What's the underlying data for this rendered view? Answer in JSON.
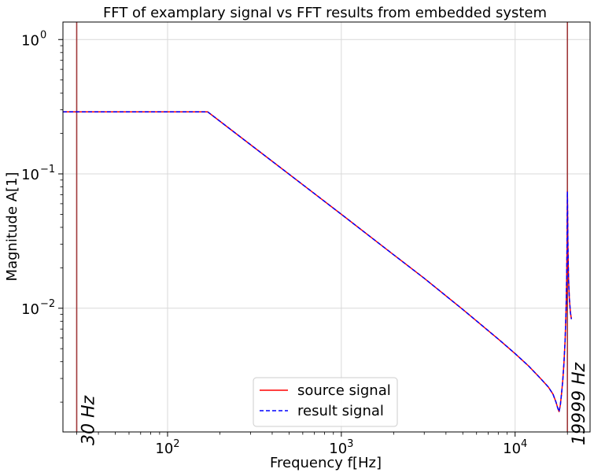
{
  "chart_data": {
    "type": "line",
    "title": "FFT of examplary signal vs FFT results from embedded system",
    "xlabel": "Frequency f[Hz]",
    "ylabel": "Magnitude A[1]",
    "xscale": "log",
    "yscale": "log",
    "xlim": [
      25,
      27000
    ],
    "ylim": [
      0.0012,
      1.35
    ],
    "grid": true,
    "legend_position": "lower-center",
    "x_ticks": [
      {
        "value": 100,
        "base": "10",
        "exp": "2"
      },
      {
        "value": 1000,
        "base": "10",
        "exp": "3"
      },
      {
        "value": 10000,
        "base": "10",
        "exp": "4"
      }
    ],
    "y_ticks": [
      {
        "value": 1,
        "base": "10",
        "exp": "0"
      },
      {
        "value": 0.1,
        "base": "10",
        "exp": "−1"
      },
      {
        "value": 0.01,
        "base": "10",
        "exp": "−2"
      }
    ],
    "series": [
      {
        "name": "source signal",
        "color": "#ff0000",
        "style": "solid",
        "x": [
          25,
          50,
          100,
          170,
          300,
          600,
          1000,
          2000,
          3000,
          5000,
          8000,
          10000,
          12000,
          14000,
          15500,
          16500,
          17200,
          17600,
          17900,
          18200,
          18500,
          18800,
          19100,
          19400,
          19650,
          19800,
          19900,
          19960,
          20000,
          20050,
          20150,
          20300,
          20500,
          20800,
          21100
        ],
        "y": [
          0.29,
          0.29,
          0.29,
          0.29,
          0.165,
          0.083,
          0.05,
          0.025,
          0.0167,
          0.0098,
          0.0059,
          0.0046,
          0.0037,
          0.003,
          0.0026,
          0.0023,
          0.002,
          0.0018,
          0.0017,
          0.0019,
          0.0023,
          0.0029,
          0.0039,
          0.0058,
          0.0098,
          0.016,
          0.028,
          0.048,
          0.074,
          0.05,
          0.028,
          0.017,
          0.012,
          0.0093,
          0.0083
        ]
      },
      {
        "name": "result signal",
        "color": "#0000ff",
        "style": "dashed",
        "x": [
          25,
          50,
          100,
          170,
          300,
          600,
          1000,
          2000,
          3000,
          5000,
          8000,
          10000,
          12000,
          14000,
          15500,
          16500,
          17200,
          17600,
          17900,
          18200,
          18500,
          18800,
          19100,
          19400,
          19650,
          19800,
          19900,
          19960,
          20000,
          20050,
          20150,
          20300,
          20500,
          20800,
          21100
        ],
        "y": [
          0.29,
          0.29,
          0.29,
          0.29,
          0.165,
          0.083,
          0.05,
          0.025,
          0.0167,
          0.0098,
          0.0059,
          0.0046,
          0.0037,
          0.003,
          0.0026,
          0.0023,
          0.002,
          0.0018,
          0.0017,
          0.0019,
          0.0023,
          0.0029,
          0.0039,
          0.0058,
          0.0098,
          0.016,
          0.028,
          0.048,
          0.074,
          0.05,
          0.028,
          0.017,
          0.012,
          0.0093,
          0.0083
        ]
      }
    ],
    "vlines": [
      {
        "x": 30,
        "label": "30 Hz",
        "color": "#a0393a"
      },
      {
        "x": 19999,
        "label": "19999 Hz",
        "color": "#a0393a"
      }
    ]
  }
}
